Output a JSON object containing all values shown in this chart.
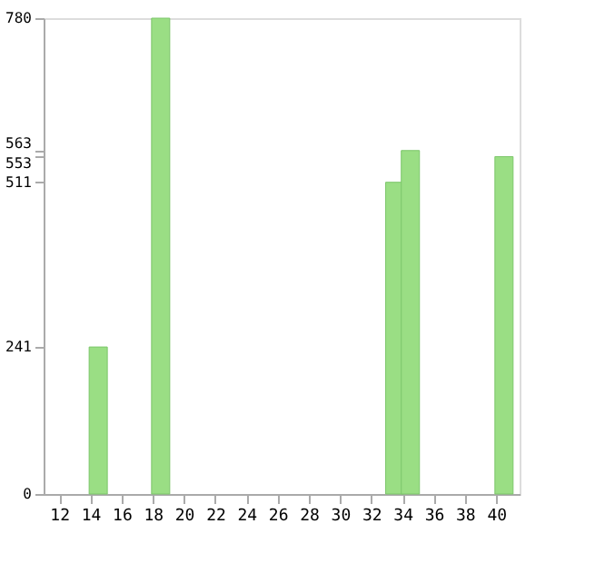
{
  "chart_data": {
    "type": "bar",
    "x": [
      14.5,
      18.5,
      33.5,
      34.5,
      40.5
    ],
    "values": [
      241,
      780,
      511,
      563,
      553
    ],
    "color": "#9ade84",
    "xlim": [
      11,
      41.5
    ],
    "xticks": [
      12,
      14,
      16,
      18,
      20,
      22,
      24,
      26,
      28,
      30,
      32,
      34,
      36,
      38,
      40
    ],
    "ylim": [
      0,
      780
    ],
    "yticks": [
      0,
      241,
      511,
      553,
      563,
      780
    ],
    "grid": false
  }
}
